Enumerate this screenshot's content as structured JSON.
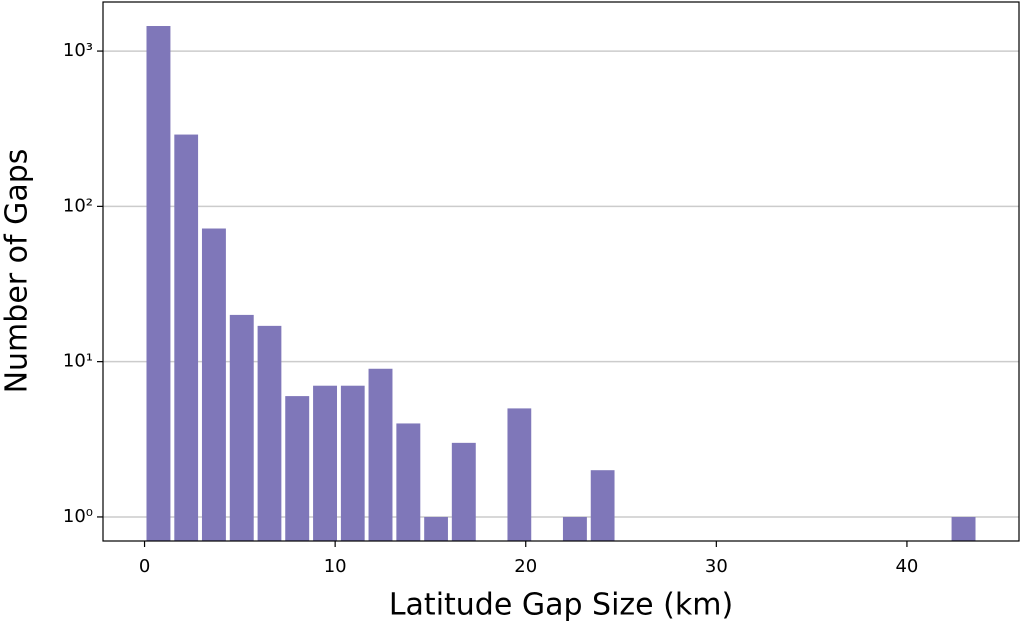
{
  "chart_data": {
    "type": "histogram",
    "x_label": "Latitude Gap Size (km)",
    "y_label": "Number of Gaps",
    "bins": [
      0,
      1.46,
      2.91,
      4.37,
      5.83,
      7.28,
      8.74,
      10.2,
      11.65,
      13.11,
      14.57,
      16.02,
      17.48,
      18.94,
      20.39,
      21.85,
      23.31,
      24.76,
      26.22,
      27.68,
      29.13,
      30.59,
      32.05,
      33.5,
      34.96,
      36.42,
      37.87,
      39.33,
      40.79,
      42.24,
      43.7
    ],
    "values": [
      1450,
      290,
      72,
      20,
      17,
      6,
      7,
      7,
      9,
      4,
      1,
      3,
      0,
      5,
      0,
      1,
      2,
      0,
      0,
      0,
      0,
      0,
      0,
      0,
      0,
      0,
      0,
      0,
      0,
      1
    ],
    "color": "#7f77b9",
    "xlim": [
      -2.18,
      45.88
    ],
    "xticks": [
      0,
      10,
      20,
      30,
      40
    ],
    "ylim": [
      0.7,
      2070
    ],
    "yscale": "log",
    "yticks": [
      {
        "value": 1,
        "label": "10⁰"
      },
      {
        "value": 10,
        "label": "10¹"
      },
      {
        "value": 100,
        "label": "10²"
      },
      {
        "value": 1000,
        "label": "10³"
      }
    ],
    "grid": "y"
  }
}
